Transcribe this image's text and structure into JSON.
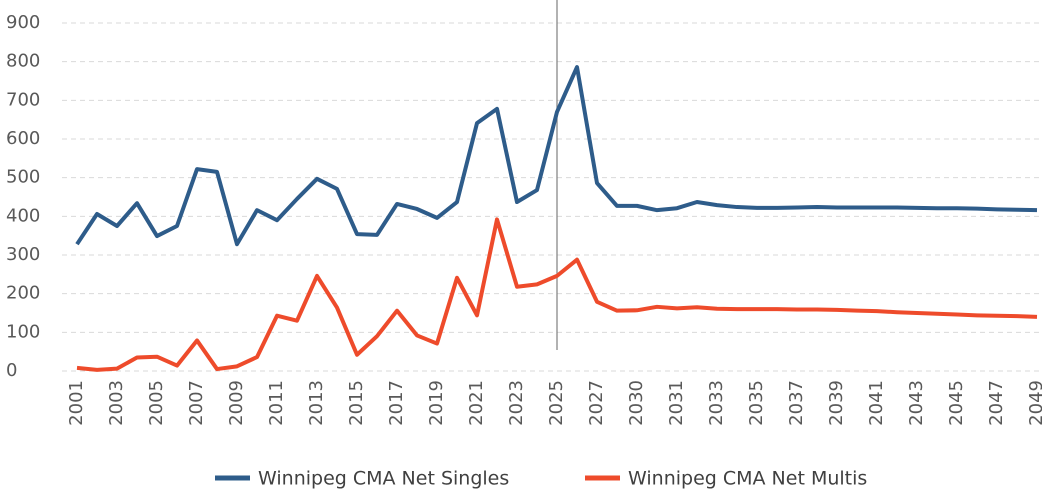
{
  "chart_data": {
    "type": "line",
    "categories": [
      "2001",
      null,
      "2003",
      null,
      "2005",
      null,
      "2007",
      null,
      "2009",
      null,
      "2011",
      null,
      "2013",
      null,
      "2015",
      null,
      "2017",
      null,
      "2019",
      null,
      "2021",
      null,
      "2023",
      null,
      "2025",
      null,
      "2027",
      null,
      "2030",
      null,
      "2031",
      null,
      "2033",
      null,
      "2035",
      null,
      "2037",
      null,
      "2039",
      null,
      "2041",
      null,
      "2043",
      null,
      "2045",
      null,
      "2047",
      null,
      "2049"
    ],
    "series": [
      {
        "name": "Winnipeg CMA Net Singles",
        "color": "#2e5c8a",
        "values": [
          328,
          406,
          375,
          434,
          349,
          375,
          522,
          515,
          328,
          416,
          390,
          445,
          497,
          471,
          354,
          352,
          432,
          419,
          396,
          437,
          641,
          678,
          437,
          468,
          670,
          786,
          486,
          427,
          427,
          416,
          421,
          437,
          429,
          424,
          422,
          422,
          423,
          424,
          423,
          423,
          423,
          423,
          422,
          421,
          421,
          420,
          418,
          417,
          416
        ]
      },
      {
        "name": "Winnipeg CMA Net Multis",
        "color": "#ee4b2b",
        "values": [
          8,
          3,
          6,
          35,
          37,
          14,
          79,
          5,
          12,
          36,
          143,
          130,
          246,
          164,
          42,
          90,
          156,
          92,
          71,
          241,
          144,
          392,
          218,
          224,
          246,
          288,
          179,
          156,
          157,
          166,
          162,
          165,
          161,
          160,
          160,
          160,
          159,
          159,
          158,
          156,
          155,
          152,
          150,
          148,
          146,
          144,
          143,
          142,
          140
        ]
      }
    ],
    "ylim": [
      0,
      900
    ],
    "yticks": [
      0,
      100,
      200,
      300,
      400,
      500,
      600,
      700,
      800,
      900
    ],
    "grid": true,
    "vline": "2025",
    "legend": "bottom"
  }
}
